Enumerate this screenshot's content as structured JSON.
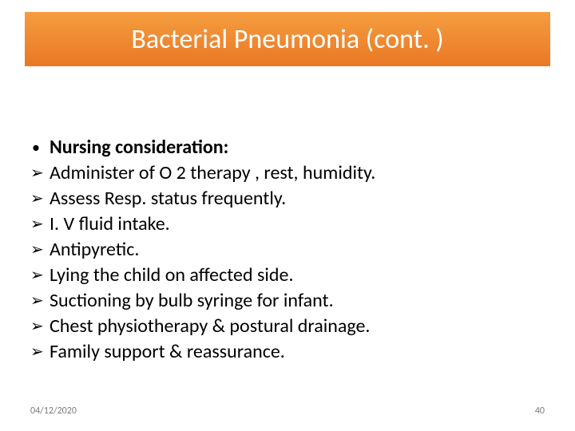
{
  "slide": {
    "title": "Bacterial Pneumonia (cont. )",
    "title_bar": {
      "fill_top": "#f59d3f",
      "fill_bottom": "#e97825",
      "text_color": "#ffffff",
      "font_size_pt": 34
    },
    "heading": {
      "marker": "•",
      "text": "Nursing consideration:",
      "bold": true
    },
    "items": [
      {
        "marker": "➢",
        "text": "Administer of O 2 therapy , rest, humidity."
      },
      {
        "marker": "➢",
        "text": "Assess Resp. status frequently."
      },
      {
        "marker": "➢",
        "text": "I. V fluid intake."
      },
      {
        "marker": "➢",
        "text": "Antipyretic."
      },
      {
        "marker": "➢",
        "text": "Lying the child on affected side."
      },
      {
        "marker": "➢",
        "text": "Suctioning by bulb syringe for infant."
      },
      {
        "marker": "➢",
        "text": "Chest physiotherapy & postural drainage."
      },
      {
        "marker": "➢",
        "text": "Family support & reassurance."
      }
    ],
    "footer": {
      "date": "04/12/2020",
      "page": "40",
      "color": "#7a7a7a",
      "font_size_pt": 12
    },
    "body_text": {
      "color": "#000000",
      "font_size_pt": 24,
      "line_height_pt": 30
    },
    "background_color": "#ffffff"
  }
}
